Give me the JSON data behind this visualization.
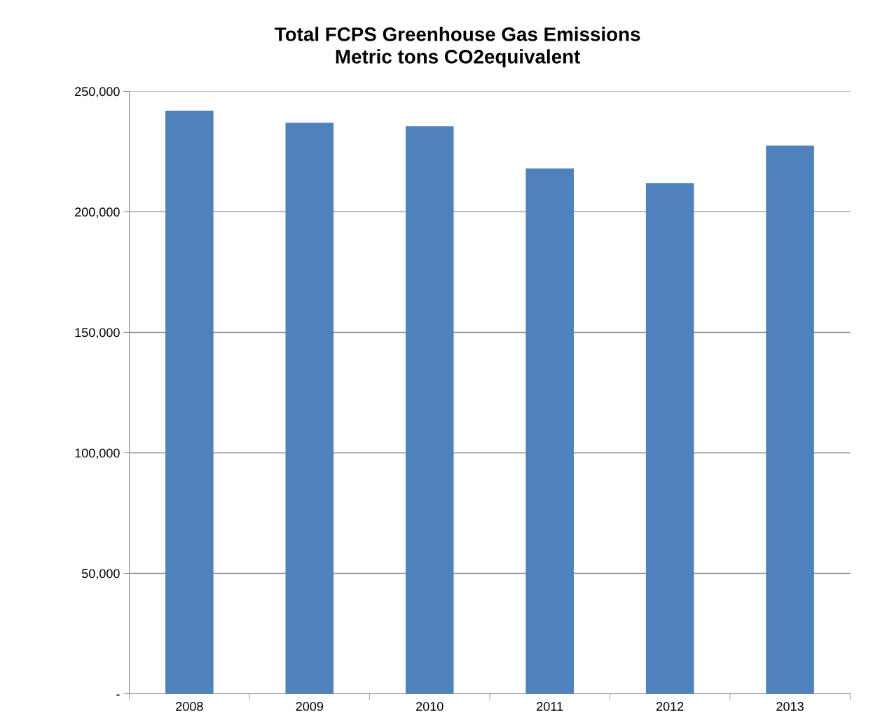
{
  "chart_data": {
    "type": "bar",
    "title": "Total FCPS Greenhouse Gas Emissions\nMetric tons CO2equivalent",
    "categories": [
      "2008",
      "2009",
      "2010",
      "2011",
      "2012",
      "2013"
    ],
    "values": [
      242000,
      237000,
      235500,
      218000,
      212000,
      227500
    ],
    "color": "#4f81bd",
    "ylim": [
      0,
      250000
    ],
    "yticks": [
      {
        "value": 0,
        "label": "-"
      },
      {
        "value": 50000,
        "label": "50,000"
      },
      {
        "value": 100000,
        "label": "100,000"
      },
      {
        "value": 150000,
        "label": "150,000"
      },
      {
        "value": 200000,
        "label": "200,000"
      },
      {
        "value": 250000,
        "label": "250,000"
      }
    ],
    "grid": "y",
    "legend": false
  }
}
